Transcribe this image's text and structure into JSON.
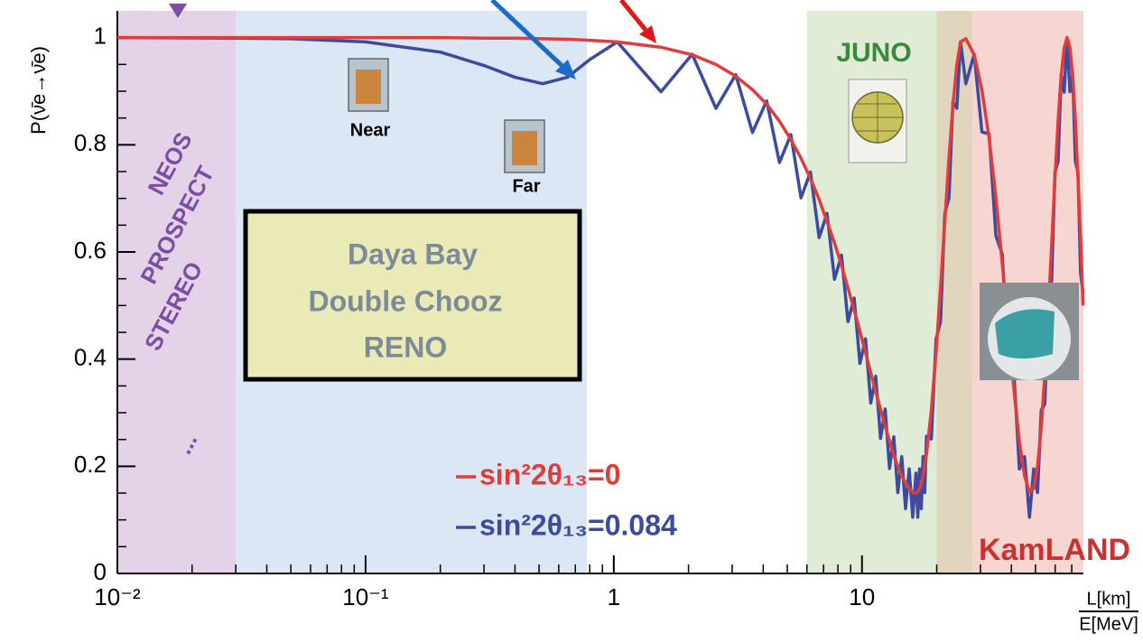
{
  "chart_data": {
    "type": "line",
    "y_label": "P(ν̄e→ν̄e)",
    "x_label": {
      "numerator": "L[km]",
      "denominator": "E[MeV]"
    },
    "log_x": true,
    "grid": false,
    "legend": "lower center",
    "xlim": [
      0.01,
      78
    ],
    "xticks": [
      {
        "value": 0.01,
        "label": "10⁻²"
      },
      {
        "value": 0.1,
        "label": "10⁻¹"
      },
      1,
      10
    ],
    "xminorticks": [
      0.02,
      0.03,
      0.04,
      0.05,
      0.06,
      0.07,
      0.08,
      0.09,
      0.2,
      0.3,
      0.4,
      0.5,
      0.6,
      0.7,
      0.8,
      0.9,
      2,
      3,
      4,
      5,
      6,
      7,
      8,
      9,
      20,
      30,
      40,
      50,
      60,
      70
    ],
    "ylim": [
      0,
      1.05
    ],
    "yticks": [
      0,
      0.2,
      0.4,
      0.6,
      0.8,
      1
    ],
    "yminorticks": [
      0.05,
      0.1,
      0.15,
      0.25,
      0.3,
      0.35,
      0.45,
      0.5,
      0.55,
      0.65,
      0.7,
      0.75,
      0.85,
      0.9,
      0.95
    ],
    "regions": [
      {
        "xlim": [
          0.01,
          0.03
        ],
        "color": "#e4d3e8"
      },
      {
        "xlim": [
          0.03,
          0.78
        ],
        "color": "#dbe7f4"
      },
      {
        "xlim": [
          6,
          20
        ],
        "color": "#e0ecd5"
      },
      {
        "xlim": [
          20,
          28
        ],
        "color": "#e2d5bd"
      },
      {
        "xlim": [
          28,
          78
        ],
        "color": "#f7d5d0"
      }
    ],
    "x": [
      0.01,
      0.03,
      0.05,
      0.1,
      0.2,
      0.3,
      0.4,
      0.517,
      0.65,
      0.8,
      1.033,
      1.55,
      2.07,
      2.58,
      3.1,
      3.62,
      4.13,
      4.65,
      5.17,
      5.68,
      6.2,
      6.72,
      7.23,
      7.75,
      8.27,
      8.78,
      9.3,
      9.81,
      10.33,
      10.85,
      11.36,
      11.88,
      12.4,
      12.91,
      13.43,
      13.94,
      14.46,
      14.98,
      15.49,
      16.01,
      16.5,
      16.78,
      17.06,
      17.34,
      17.62,
      17.9,
      18.19,
      19.03,
      19.88,
      20.72,
      21.56,
      22.41,
      23.25,
      24.1,
      24.94,
      26.21,
      28.32,
      30.42,
      32.53,
      34.64,
      36.75,
      38.86,
      40.96,
      43.07,
      45.18,
      47.29,
      49.19,
      50.97,
      52.76,
      54.54,
      56.33,
      58.11,
      59.9,
      61.69,
      63.46,
      65.25,
      67.03,
      68.82,
      70.61,
      72.39,
      74.18,
      75.96,
      77.75
    ],
    "series": [
      {
        "name": "sin²2θ₁₃=0",
        "color": "#e03c3c",
        "values": [
          1,
          1,
          1,
          1,
          1,
          0.999,
          0.999,
          0.998,
          0.997,
          0.995,
          0.992,
          0.982,
          0.968,
          0.95,
          0.928,
          0.903,
          0.876,
          0.844,
          0.81,
          0.775,
          0.737,
          0.698,
          0.657,
          0.617,
          0.575,
          0.533,
          0.492,
          0.452,
          0.413,
          0.374,
          0.34,
          0.306,
          0.275,
          0.247,
          0.221,
          0.2,
          0.182,
          0.169,
          0.159,
          0.152,
          0.15,
          0.152,
          0.158,
          0.169,
          0.182,
          0.2,
          0.222,
          0.305,
          0.412,
          0.533,
          0.657,
          0.775,
          0.874,
          0.949,
          0.992,
          0.998,
          0.968,
          0.903,
          0.812,
          0.701,
          0.578,
          0.454,
          0.342,
          0.246,
          0.182,
          0.152,
          0.159,
          0.2,
          0.273,
          0.373,
          0.489,
          0.615,
          0.737,
          0.846,
          0.929,
          0.981,
          1,
          0.982,
          0.929,
          0.846,
          0.737,
          0.629,
          0.5
        ]
      },
      {
        "name": "sin²2θ₁₃=0.084",
        "color": "#3c4ba0",
        "values": [
          1,
          0.999,
          0.998,
          0.992,
          0.973,
          0.948,
          0.926,
          0.914,
          0.926,
          0.959,
          0.992,
          0.899,
          0.969,
          0.868,
          0.931,
          0.823,
          0.882,
          0.767,
          0.819,
          0.701,
          0.749,
          0.627,
          0.672,
          0.549,
          0.594,
          0.47,
          0.514,
          0.392,
          0.438,
          0.318,
          0.368,
          0.252,
          0.307,
          0.196,
          0.255,
          0.151,
          0.218,
          0.121,
          0.195,
          0.105,
          0.187,
          0.105,
          0.195,
          0.121,
          0.218,
          0.151,
          0.256,
          0.251,
          0.437,
          0.47,
          0.672,
          0.701,
          0.88,
          0.868,
          0.992,
          0.914,
          0.969,
          0.824,
          0.82,
          0.63,
          0.596,
          0.394,
          0.371,
          0.195,
          0.218,
          0.105,
          0.195,
          0.151,
          0.305,
          0.316,
          0.511,
          0.548,
          0.749,
          0.769,
          0.932,
          0.898,
          1,
          0.899,
          0.932,
          0.769,
          0.749,
          0.561,
          0.522
        ]
      }
    ],
    "annotations": {
      "experiments": [
        "NEOS",
        "PROSPECT",
        "STEREO",
        "..."
      ],
      "near": "Near",
      "far": "Far",
      "reactor_box": [
        "Daya Bay",
        "Double Chooz",
        "RENO"
      ],
      "juno": "JUNO",
      "kamland": "KamLAND"
    }
  }
}
